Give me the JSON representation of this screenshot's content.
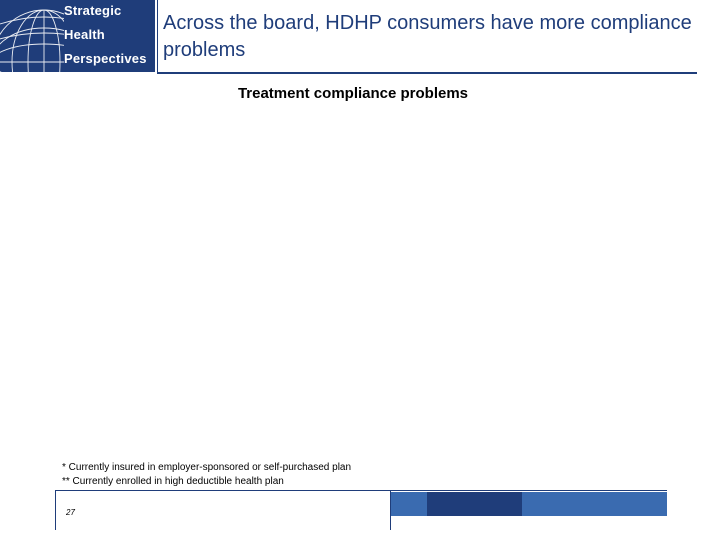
{
  "logo": {
    "lines": [
      "Strategic",
      "Health",
      "Perspectives"
    ],
    "icon": "globe-icon",
    "colors": {
      "background": "#1f3d7a",
      "text": "#ffffff"
    }
  },
  "slide": {
    "title": "Across the board, HDHP consumers have more compliance problems",
    "chart_title": "Treatment compliance problems",
    "footnotes": [
      "* Currently insured in employer-sponsored or self-purchased plan",
      "** Currently enrolled in high deductible health plan"
    ],
    "page_number": "27"
  },
  "colors": {
    "brand": "#1f3d7a",
    "accent": "#3a6bb0"
  }
}
